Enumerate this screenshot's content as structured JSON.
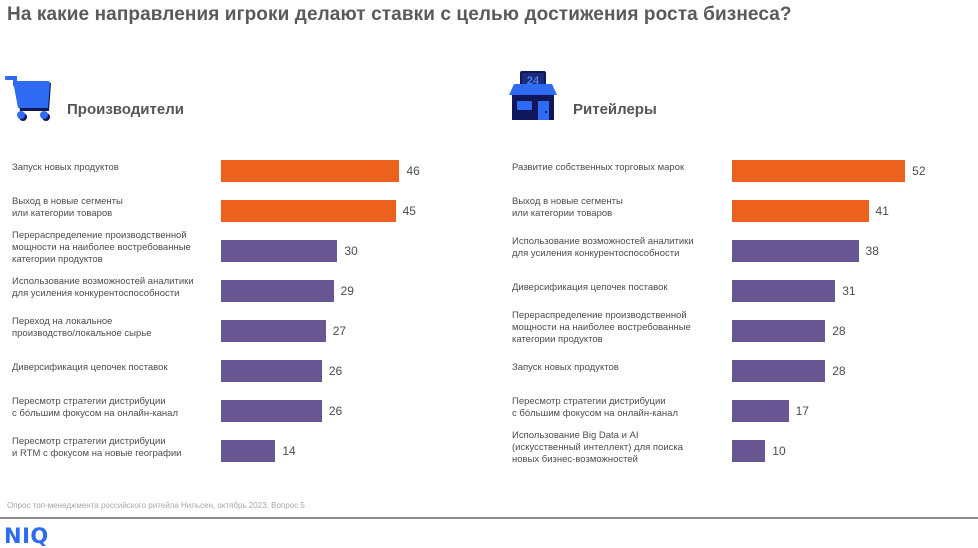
{
  "title": "На какие направления игроки делают ставки с целью достижения роста бизнеса?",
  "colors": {
    "highlight": "#ec611d",
    "default": "#685693",
    "icon_blue": "#2f6bf2",
    "icon_navy": "#10175a",
    "logo": "#2c6bf2"
  },
  "panels": [
    {
      "title": "Производители",
      "icon": "shopping-cart-icon"
    },
    {
      "title": "Ритейлеры",
      "icon": "store-24-icon",
      "icon_text": "24"
    }
  ],
  "chart_data": [
    {
      "type": "bar",
      "orientation": "horizontal",
      "title": "Производители",
      "xlabel": "",
      "ylabel": "",
      "xlim": [
        0,
        46
      ],
      "grid": false,
      "categories": [
        [
          "Запуск новых продуктов"
        ],
        [
          "Выход в новые сегменты",
          "или категории товаров"
        ],
        [
          "Перераспределение производственной",
          "мощности на наиболее востребованные",
          "категории продуктов"
        ],
        [
          "Использование возможностей аналитики",
          "для усиления конкурентоспособности"
        ],
        [
          "Переход на локальное",
          "производство/локальное сырье"
        ],
        [
          "Диверсификация цепочек поставок"
        ],
        [
          "Пересмотр стратегии дистрибуции",
          "с бóльшим фокусом на онлайн-канал"
        ],
        [
          "Пересмотр стратегии дистрибуции",
          "и RTM с фокусом на новые географии"
        ]
      ],
      "values": [
        46,
        45,
        30,
        29,
        27,
        26,
        26,
        14
      ],
      "highlighted": [
        true,
        true,
        false,
        false,
        false,
        false,
        false,
        false
      ]
    },
    {
      "type": "bar",
      "orientation": "horizontal",
      "title": "Ритейлеры",
      "xlabel": "",
      "ylabel": "",
      "xlim": [
        0,
        52
      ],
      "grid": false,
      "categories": [
        [
          "Развитие собственных торговых марок"
        ],
        [
          "Выход в новые сегменты",
          "или категории товаров"
        ],
        [
          "Использование возможностей аналитики",
          "для усиления конкурентоспособности"
        ],
        [
          "Диверсификация цепочек поставок"
        ],
        [
          "Перераспределение производственной",
          "мощности на наиболее востребованные",
          "категории продуктов"
        ],
        [
          "Запуск новых продуктов"
        ],
        [
          "Пересмотр стратегии дистрибуции",
          "с бóльшим фокусом на онлайн-канал"
        ],
        [
          "Использование Big Data и AI",
          "(искусственный интеллект) для поиска",
          "новых бизнес-возможностей"
        ]
      ],
      "values": [
        52,
        41,
        38,
        31,
        28,
        28,
        17,
        10
      ],
      "highlighted": [
        true,
        true,
        false,
        false,
        false,
        false,
        false,
        false
      ]
    }
  ],
  "footer": {
    "source": "Опрос топ-менеджмента российского ритейла Нильсен, октябрь 2023. Вопрос 5",
    "logo": "NIQ"
  }
}
